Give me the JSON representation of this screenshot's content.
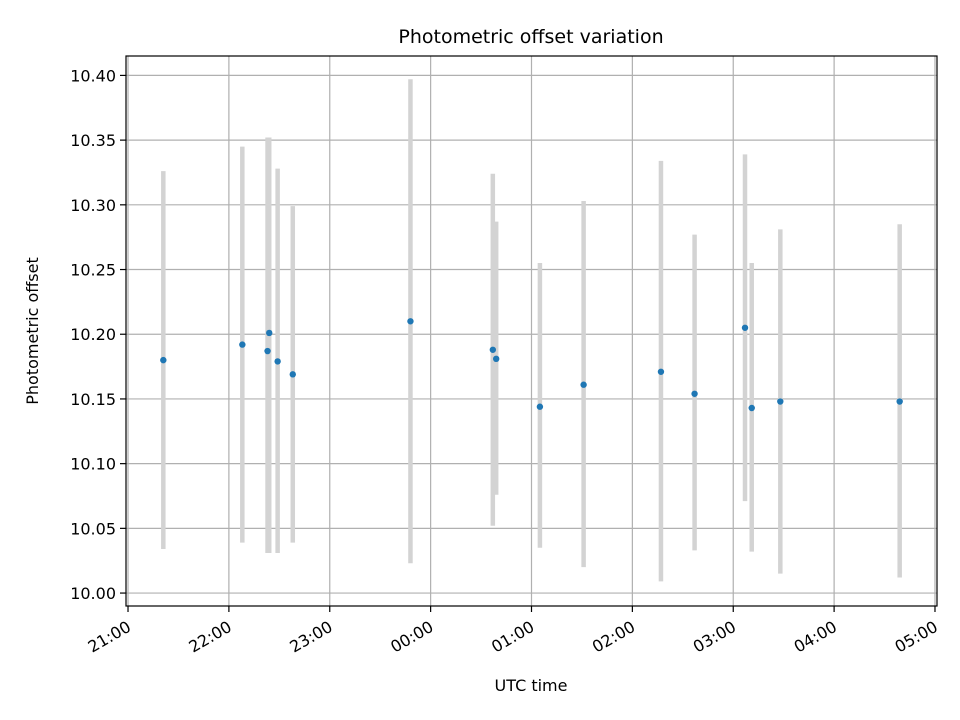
{
  "chart_data": {
    "type": "scatter",
    "title": "Photometric offset variation",
    "xlabel": "UTC time",
    "ylabel": "Photometric offset",
    "xlim": [
      "21:00",
      "05:00"
    ],
    "ylim": [
      9.99,
      10.415
    ],
    "grid": true,
    "x_ticks": [
      "21:00",
      "22:00",
      "23:00",
      "00:00",
      "01:00",
      "02:00",
      "03:00",
      "04:00",
      "05:00"
    ],
    "y_ticks": [
      "10.00",
      "10.05",
      "10.10",
      "10.15",
      "10.20",
      "10.25",
      "10.30",
      "10.35",
      "10.40"
    ],
    "colors": {
      "point": "#1f77b4",
      "errorbar": "#d3d3d3",
      "grid": "#b0b0b0"
    },
    "points": [
      {
        "time": "21:21",
        "y": 10.18,
        "err_low": 10.034,
        "err_high": 10.326
      },
      {
        "time": "22:08",
        "y": 10.192,
        "err_low": 10.039,
        "err_high": 10.345
      },
      {
        "time": "22:23",
        "y": 10.187,
        "err_low": 10.031,
        "err_high": 10.352
      },
      {
        "time": "22:24",
        "y": 10.201,
        "err_low": 10.031,
        "err_high": 10.352
      },
      {
        "time": "22:29",
        "y": 10.179,
        "err_low": 10.031,
        "err_high": 10.328
      },
      {
        "time": "22:38",
        "y": 10.169,
        "err_low": 10.039,
        "err_high": 10.299
      },
      {
        "time": "23:48",
        "y": 10.21,
        "err_low": 10.023,
        "err_high": 10.397
      },
      {
        "time": "00:37",
        "y": 10.188,
        "err_low": 10.052,
        "err_high": 10.324
      },
      {
        "time": "00:39",
        "y": 10.181,
        "err_low": 10.076,
        "err_high": 10.287
      },
      {
        "time": "01:05",
        "y": 10.144,
        "err_low": 10.035,
        "err_high": 10.255
      },
      {
        "time": "01:31",
        "y": 10.161,
        "err_low": 10.02,
        "err_high": 10.303
      },
      {
        "time": "02:17",
        "y": 10.171,
        "err_low": 10.009,
        "err_high": 10.334
      },
      {
        "time": "02:37",
        "y": 10.154,
        "err_low": 10.033,
        "err_high": 10.277
      },
      {
        "time": "03:07",
        "y": 10.205,
        "err_low": 10.071,
        "err_high": 10.339
      },
      {
        "time": "03:11",
        "y": 10.143,
        "err_low": 10.032,
        "err_high": 10.255
      },
      {
        "time": "03:28",
        "y": 10.148,
        "err_low": 10.015,
        "err_high": 10.281
      },
      {
        "time": "04:39",
        "y": 10.148,
        "err_low": 10.012,
        "err_high": 10.285
      }
    ]
  }
}
